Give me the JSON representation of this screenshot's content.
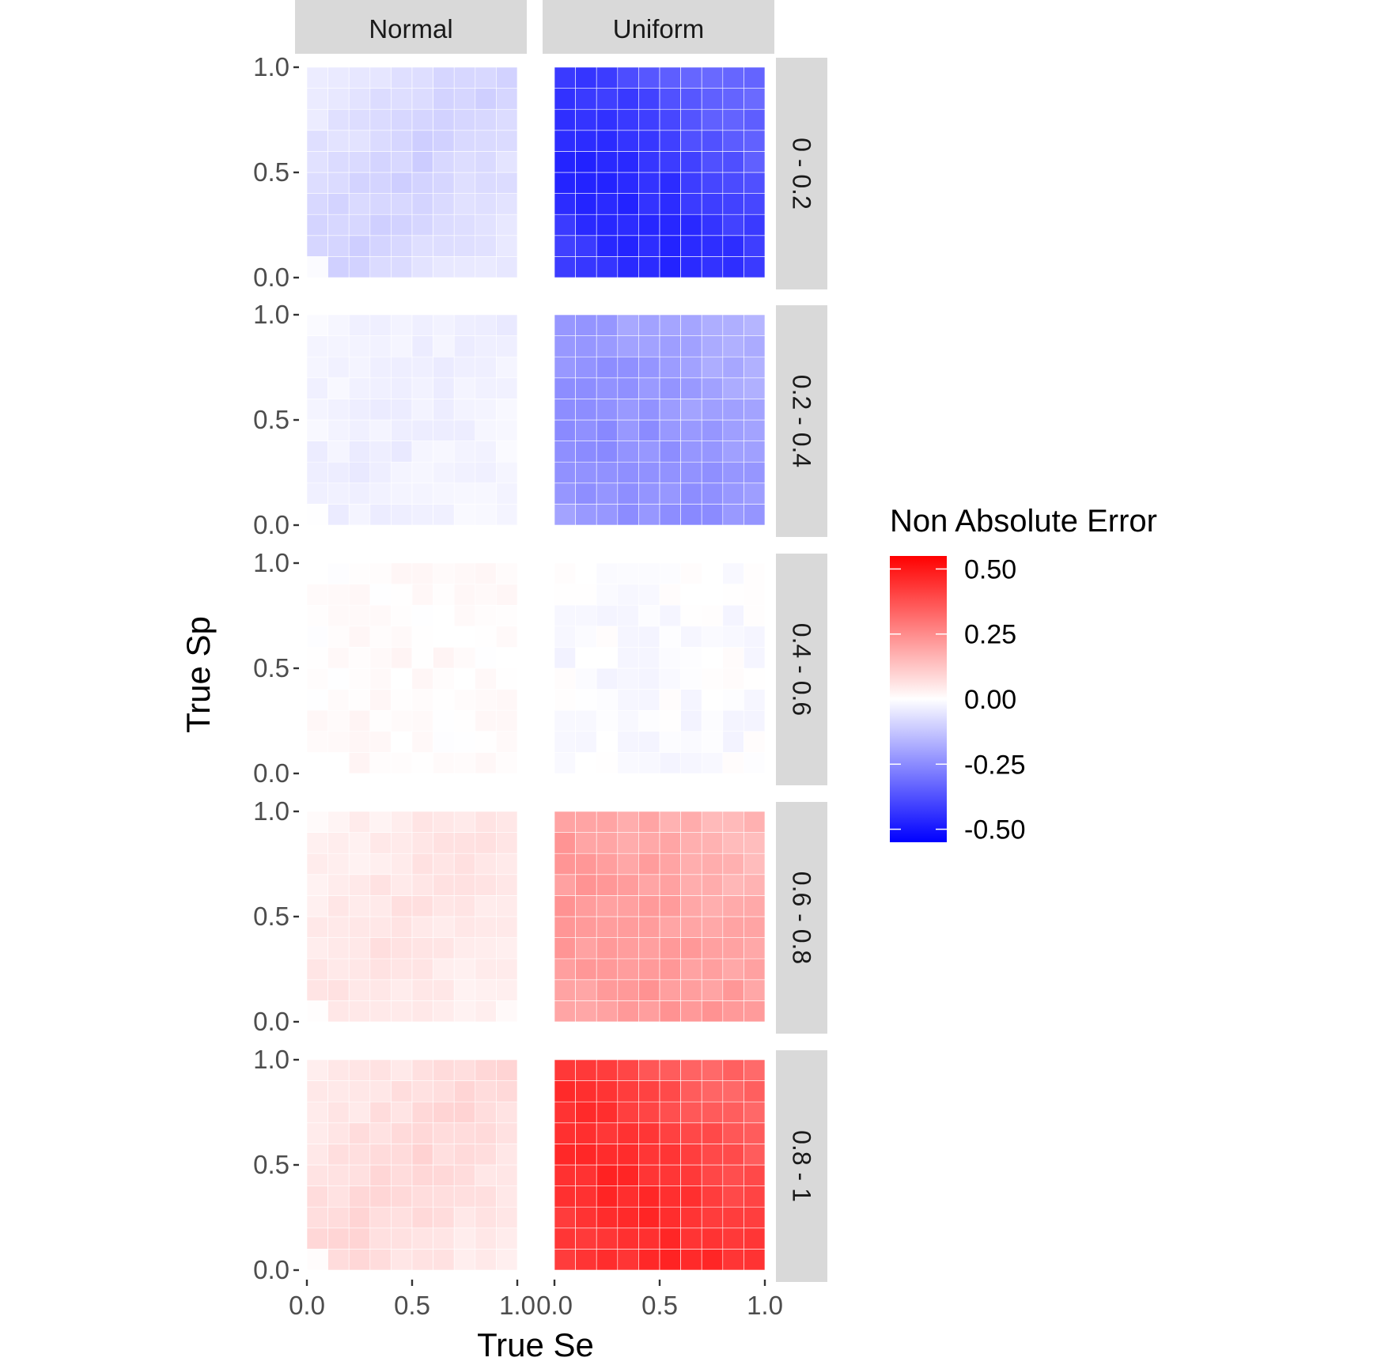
{
  "chart_data": {
    "type": "heatmap",
    "xlabel": "True Se",
    "ylabel": "True Sp",
    "xlim": [
      0,
      1
    ],
    "ylim": [
      0,
      1
    ],
    "x_ticks": [
      "0.0",
      "0.5",
      "1.0"
    ],
    "y_ticks": [
      "0.0",
      "0.5",
      "1.0"
    ],
    "grid_size": 10,
    "column_facets": [
      "Normal",
      "Uniform"
    ],
    "row_facets": [
      "0 - 0.2",
      "0.2 - 0.4",
      "0.4 - 0.6",
      "0.6 - 0.8",
      "0.8 - 1"
    ],
    "legend": {
      "title": "Non Absolute Error",
      "placement": "right",
      "ticks": [
        "0.50",
        "0.25",
        "0.00",
        "-0.25",
        "-0.50"
      ],
      "limits": [
        -0.55,
        0.55
      ],
      "low_color": "#0000ff",
      "mid_color": "#ffffff",
      "high_color": "#ff0000"
    },
    "panel_mean_error": {
      "0 - 0.2": {
        "Normal": -0.08,
        "Uniform": -0.46
      },
      "0.2 - 0.4": {
        "Normal": -0.03,
        "Uniform": -0.24
      },
      "0.4 - 0.6": {
        "Normal": 0.01,
        "Uniform": -0.01
      },
      "0.6 - 0.8": {
        "Normal": 0.05,
        "Uniform": 0.22
      },
      "0.8 - 1": {
        "Normal": 0.07,
        "Uniform": 0.46
      }
    }
  }
}
